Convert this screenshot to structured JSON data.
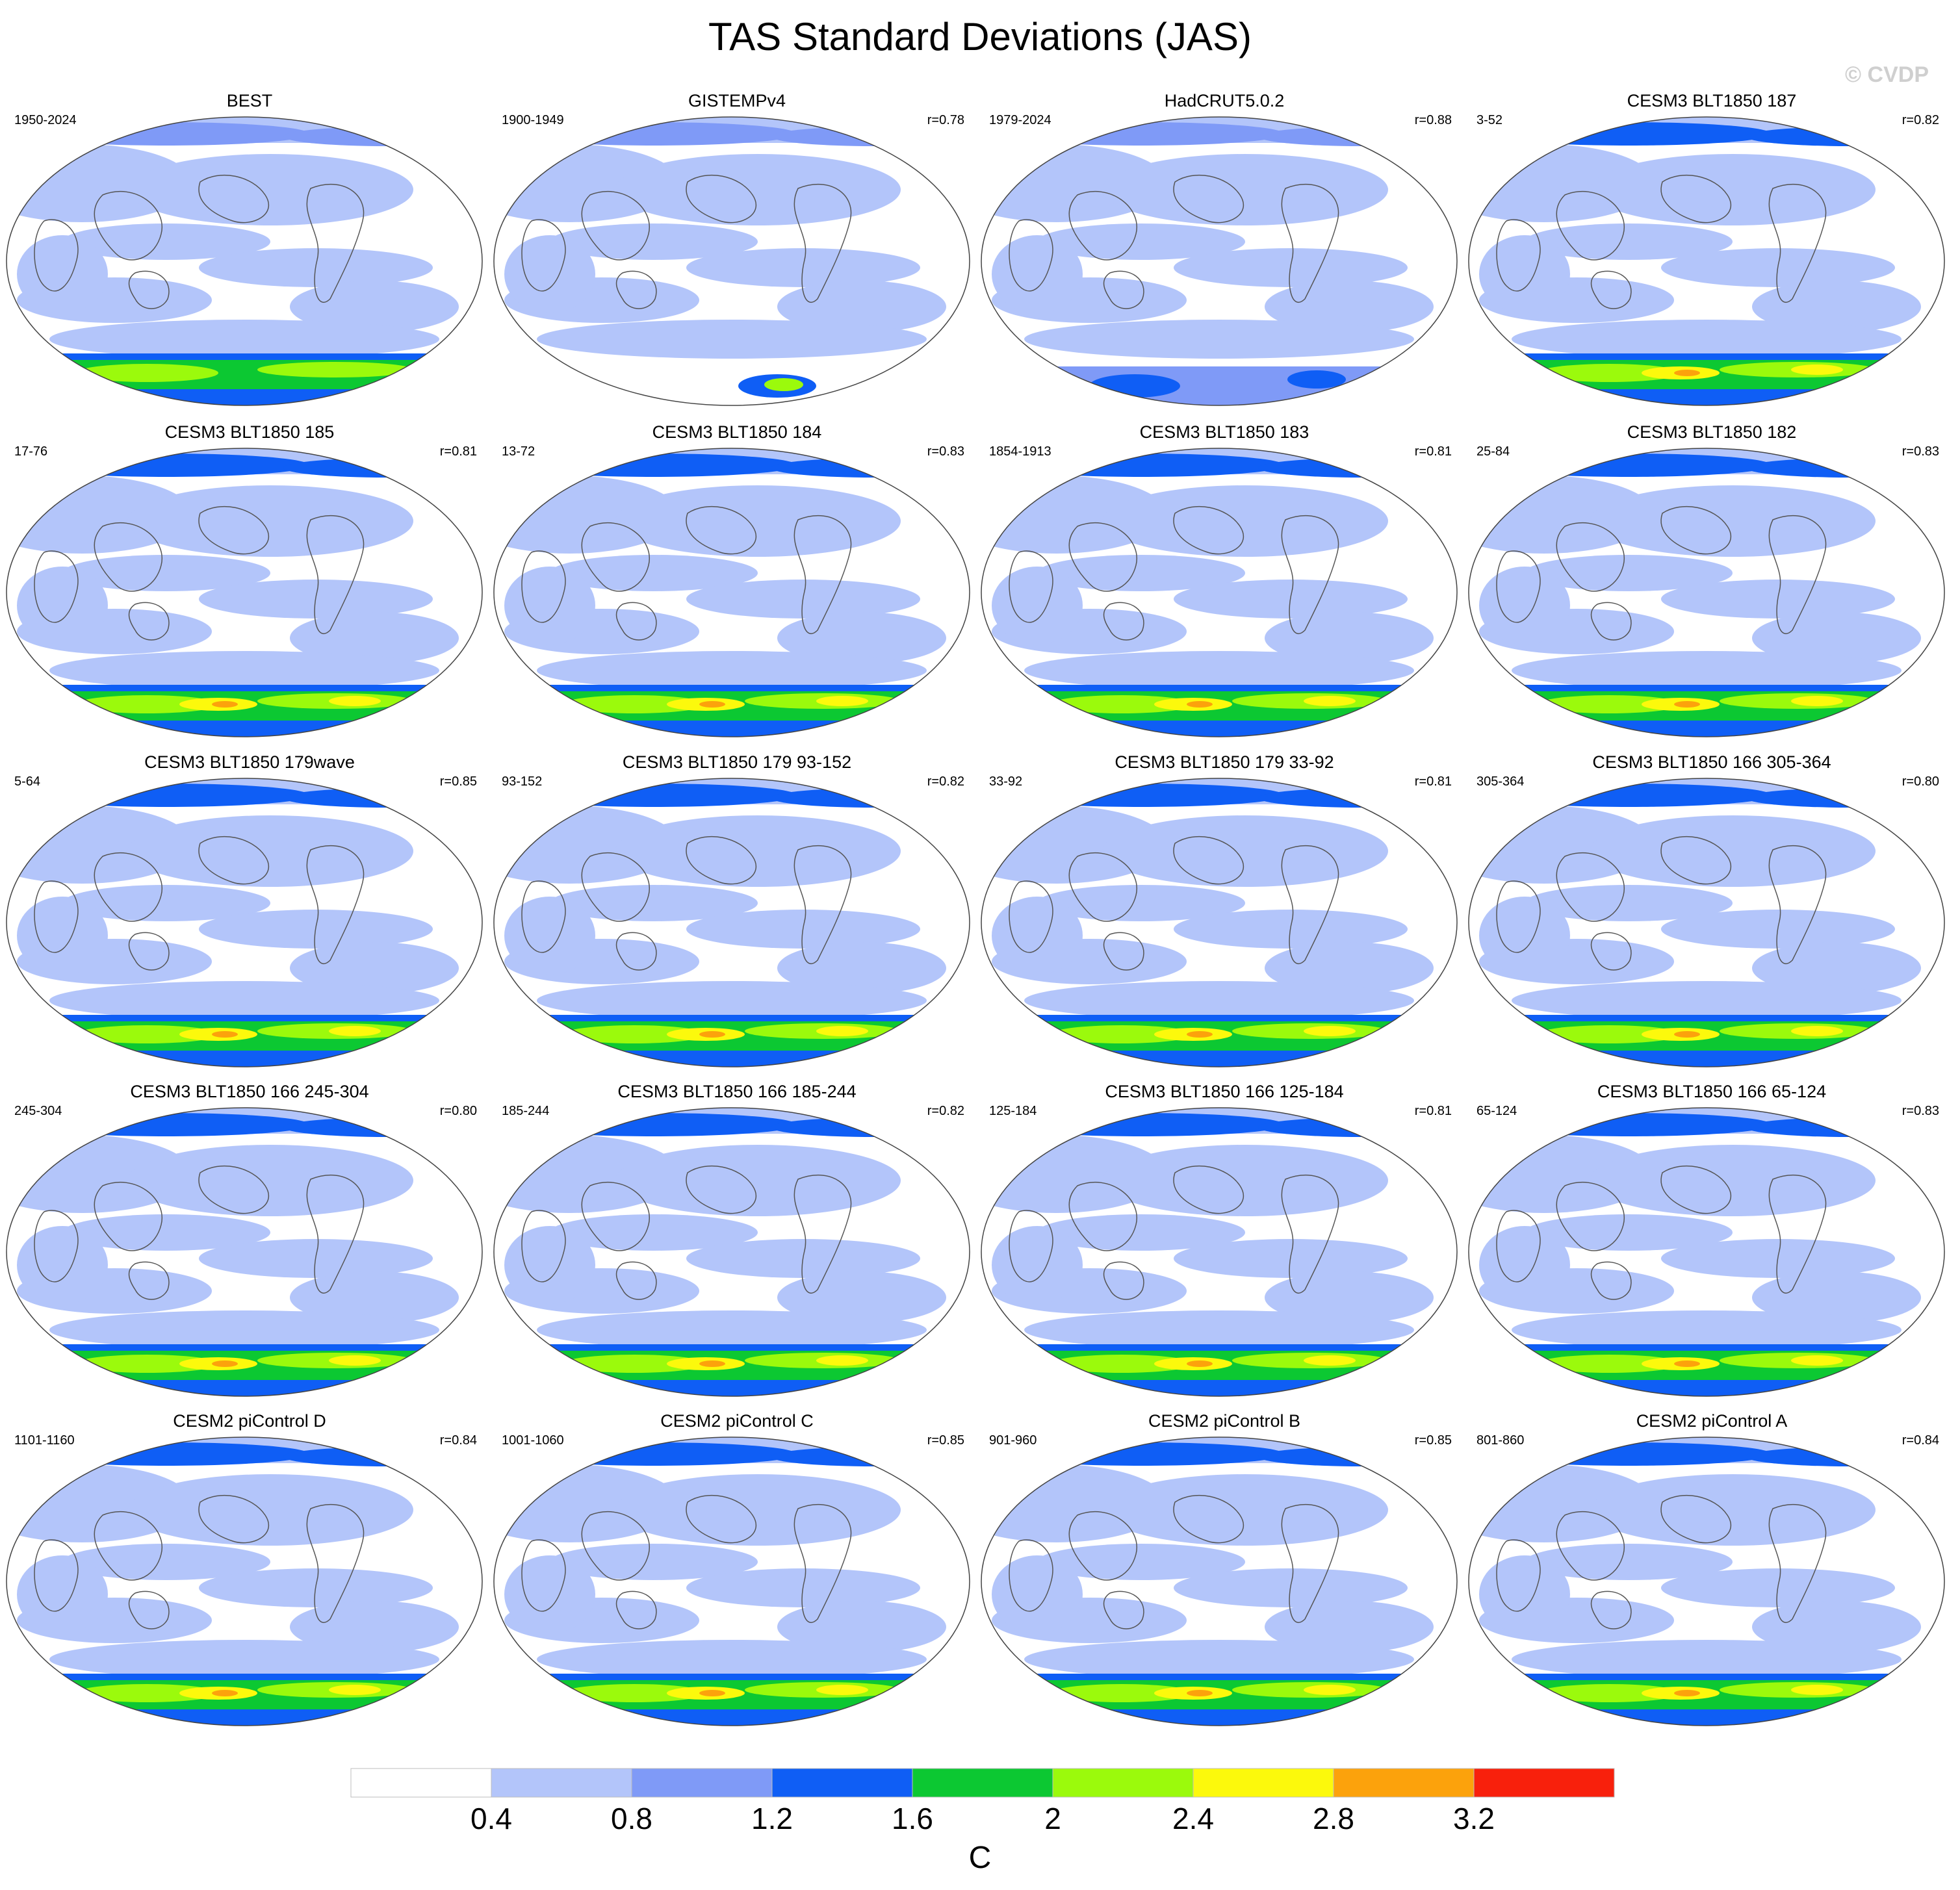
{
  "figure": {
    "title": "TAS Standard Deviations (JAS)",
    "watermark": "© CVDP"
  },
  "panels": [
    {
      "title": "BEST",
      "period": "1950-2024",
      "corr": ""
    },
    {
      "title": "GISTEMPv4",
      "period": "1900-1949",
      "corr": "r=0.78"
    },
    {
      "title": "HadCRUT5.0.2",
      "period": "1979-2024",
      "corr": "r=0.88"
    },
    {
      "title": "CESM3 BLT1850 187",
      "period": "3-52",
      "corr": "r=0.82"
    },
    {
      "title": "CESM3 BLT1850 185",
      "period": "17-76",
      "corr": "r=0.81"
    },
    {
      "title": "CESM3 BLT1850 184",
      "period": "13-72",
      "corr": "r=0.83"
    },
    {
      "title": "CESM3 BLT1850 183",
      "period": "1854-1913",
      "corr": "r=0.81"
    },
    {
      "title": "CESM3 BLT1850 182",
      "period": "25-84",
      "corr": "r=0.83"
    },
    {
      "title": "CESM3 BLT1850 179wave",
      "period": "5-64",
      "corr": "r=0.85"
    },
    {
      "title": "CESM3 BLT1850 179 93-152",
      "period": "93-152",
      "corr": "r=0.82"
    },
    {
      "title": "CESM3 BLT1850 179 33-92",
      "period": "33-92",
      "corr": "r=0.81"
    },
    {
      "title": "CESM3 BLT1850 166 305-364",
      "period": "305-364",
      "corr": "r=0.80"
    },
    {
      "title": "CESM3 BLT1850 166 245-304",
      "period": "245-304",
      "corr": "r=0.80"
    },
    {
      "title": "CESM3 BLT1850 166 185-244",
      "period": "185-244",
      "corr": "r=0.82"
    },
    {
      "title": "CESM3 BLT1850 166 125-184",
      "period": "125-184",
      "corr": "r=0.81"
    },
    {
      "title": "CESM3 BLT1850 166 65-124",
      "period": "65-124",
      "corr": "r=0.83"
    },
    {
      "title": "CESM2 piControl D",
      "period": "1101-1160",
      "corr": "r=0.84"
    },
    {
      "title": "CESM2 piControl C",
      "period": "1001-1060",
      "corr": "r=0.85"
    },
    {
      "title": "CESM2 piControl B",
      "period": "901-960",
      "corr": "r=0.85"
    },
    {
      "title": "CESM2 piControl A",
      "period": "801-860",
      "corr": "r=0.84"
    }
  ],
  "colorbar": {
    "unit": "C",
    "levels": [
      "0.4",
      "0.8",
      "1.2",
      "1.6",
      "2",
      "2.4",
      "2.8",
      "3.2"
    ],
    "colors": [
      "#ffffff",
      "#b3c5fa",
      "#7f9af7",
      "#0f5ef5",
      "#0cc832",
      "#9bfa0c",
      "#fcf90c",
      "#fca20c",
      "#f8200c"
    ]
  },
  "palette": {
    "ocean_low": "#ffffff",
    "band_light": "#b3c5fa",
    "band_mid": "#7f9af7",
    "band_strong": "#0f5ef5",
    "green": "#0cc832",
    "lime": "#9bfa0c",
    "yellow": "#fcf90c",
    "orange": "#fca20c",
    "red": "#f8200c",
    "coast": "#555555"
  }
}
